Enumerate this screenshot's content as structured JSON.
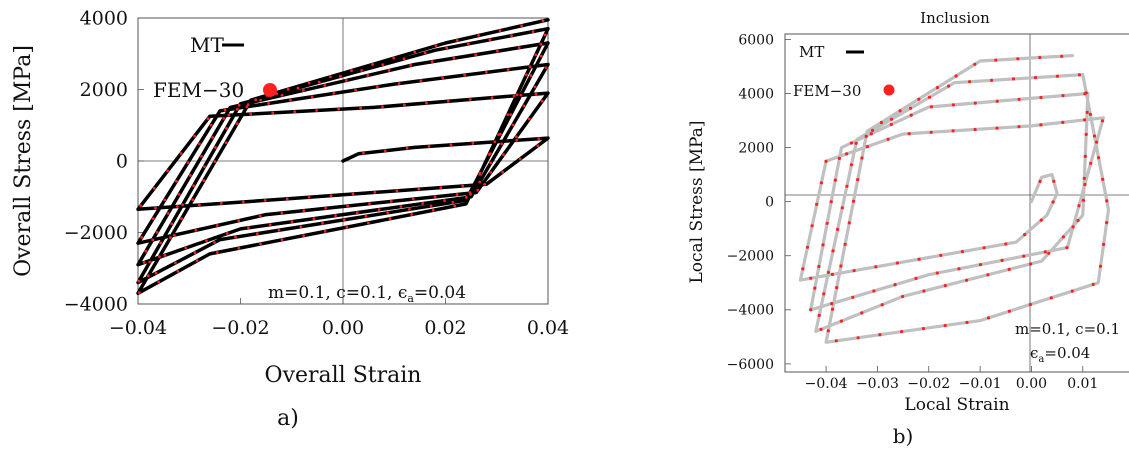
{
  "figure": {
    "panel_a_label": "a)",
    "panel_b_label": "b)"
  },
  "chart_data": [
    {
      "type": "line",
      "panel": "a)",
      "title": "",
      "xlabel": "Overall Strain",
      "ylabel": "Overall Stress [MPa]",
      "xlim": [
        -0.04,
        0.04
      ],
      "ylim": [
        -4000,
        4000
      ],
      "x_ticks": [
        -0.04,
        -0.02,
        0.0,
        0.02,
        0.04
      ],
      "x_tick_labels": [
        "−0.04",
        "−0.02",
        "0.00",
        "0.02",
        "0.04"
      ],
      "y_ticks": [
        -4000,
        -2000,
        0,
        2000,
        4000
      ],
      "y_tick_labels": [
        "−4000",
        "−2000",
        "0",
        "2000",
        "4000"
      ],
      "grid": false,
      "legend": {
        "placement": "top-left"
      },
      "annotation": {
        "prefix": "m=0.1, c=0.1, ",
        "eps_symbol": "ϵ",
        "eps_subscript": "a",
        "eps_value": "=0.04"
      },
      "series": [
        {
          "name": "MT",
          "color": "#000000",
          "points": [
            [
              0.0,
              0
            ],
            [
              0.003,
              200
            ],
            [
              0.014,
              380
            ],
            [
              0.04,
              640
            ],
            [
              0.028,
              -650
            ],
            [
              -0.01,
              -1050
            ],
            [
              -0.04,
              -1350
            ],
            [
              -0.026,
              1250
            ],
            [
              0.006,
              1500
            ],
            [
              0.04,
              1900
            ],
            [
              0.026,
              -880
            ],
            [
              -0.015,
              -1500
            ],
            [
              -0.04,
              -2300
            ],
            [
              -0.024,
              1400
            ],
            [
              0.01,
              2150
            ],
            [
              0.04,
              2700
            ],
            [
              0.025,
              -1000
            ],
            [
              -0.02,
              -1900
            ],
            [
              -0.04,
              -2900
            ],
            [
              -0.022,
              1500
            ],
            [
              0.014,
              2700
            ],
            [
              0.04,
              3300
            ],
            [
              0.024,
              -1100
            ],
            [
              -0.024,
              -2200
            ],
            [
              -0.04,
              -3400
            ],
            [
              -0.02,
              1600
            ],
            [
              0.018,
              3100
            ],
            [
              0.04,
              3700
            ],
            [
              0.024,
              -1200
            ],
            [
              -0.026,
              -2600
            ],
            [
              -0.04,
              -3700
            ],
            [
              -0.018,
              1700
            ],
            [
              0.02,
              3300
            ],
            [
              0.04,
              3950
            ]
          ]
        },
        {
          "name": "FEM−30",
          "color": "#ff2020"
        }
      ]
    },
    {
      "type": "line",
      "panel": "b)",
      "title": "Inclusion",
      "xlabel": "Local Strain",
      "ylabel": "Local Stress [MPa]",
      "xlim": [
        -0.048,
        0.019
      ],
      "ylim": [
        -6300,
        6200
      ],
      "x_ticks": [
        -0.04,
        -0.03,
        -0.02,
        -0.01,
        0.0,
        0.01
      ],
      "x_tick_labels": [
        "−0.04",
        "−0.03",
        "−0.02",
        "−0.01",
        "0.00",
        "0.01"
      ],
      "y_ticks": [
        -6000,
        -4000,
        -2000,
        0,
        2000,
        4000,
        6000
      ],
      "y_tick_labels": [
        "−6000",
        "−4000",
        "−2000",
        "0",
        "2000",
        "4000",
        "6000"
      ],
      "grid": false,
      "legend": {
        "placement": "top-left"
      },
      "annotation": {
        "line1": "m=0.1, c=0.1",
        "eps_symbol": "ϵ",
        "eps_subscript": "a",
        "eps_value": "=0.04"
      },
      "series": [
        {
          "name": "MT",
          "color": "#c0c0c0",
          "points": [
            [
              0.0,
              0
            ],
            [
              0.002,
              900
            ],
            [
              0.004,
              1000
            ],
            [
              0.005,
              300
            ],
            [
              0.003,
              -500
            ],
            [
              -0.003,
              -1500
            ],
            [
              -0.012,
              -1800
            ],
            [
              -0.045,
              -2900
            ],
            [
              -0.04,
              1500
            ],
            [
              -0.025,
              2500
            ],
            [
              0.0,
              2800
            ],
            [
              0.014,
              3100
            ],
            [
              0.007,
              -1700
            ],
            [
              -0.02,
              -2700
            ],
            [
              -0.043,
              -4000
            ],
            [
              -0.037,
              2000
            ],
            [
              -0.02,
              3500
            ],
            [
              0.011,
              4000
            ],
            [
              0.01,
              -500
            ],
            [
              0.002,
              -2200
            ],
            [
              -0.025,
              -3500
            ],
            [
              -0.042,
              -4800
            ],
            [
              -0.034,
              2300
            ],
            [
              -0.015,
              4400
            ],
            [
              0.01,
              4700
            ],
            [
              0.015,
              -300
            ],
            [
              0.013,
              -3000
            ],
            [
              -0.01,
              -4400
            ],
            [
              -0.04,
              -5200
            ],
            [
              -0.032,
              2600
            ],
            [
              -0.01,
              5200
            ],
            [
              0.008,
              5400
            ]
          ]
        },
        {
          "name": "FEM−30",
          "color": "#ff2020"
        }
      ]
    }
  ]
}
